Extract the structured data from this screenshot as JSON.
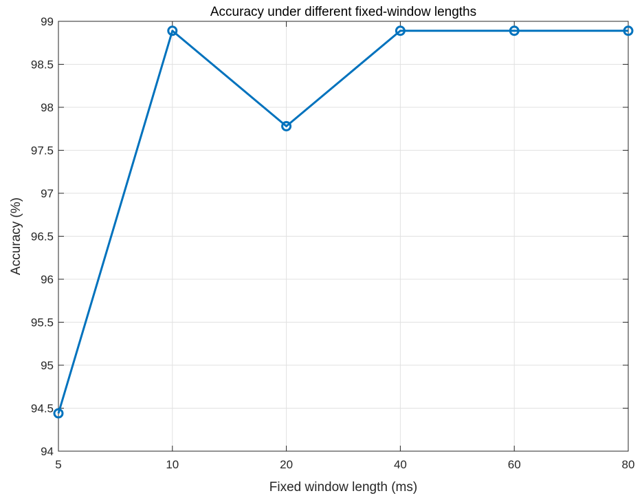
{
  "chart_data": {
    "type": "line",
    "title": "Accuracy under different fixed-window lengths",
    "xlabel": "Fixed window length (ms)",
    "ylabel": "Accuracy (%)",
    "categories": [
      "5",
      "10",
      "20",
      "40",
      "60",
      "80"
    ],
    "ylim": [
      94,
      99
    ],
    "yticks": [
      "94",
      "94.5",
      "95",
      "95.5",
      "96",
      "96.5",
      "97",
      "97.5",
      "98",
      "98.5",
      "99"
    ],
    "grid": true,
    "series": [
      {
        "values": [
          94.44,
          98.89,
          97.78,
          98.89,
          98.89,
          98.89
        ],
        "color": "#0072BD",
        "marker": "circle"
      }
    ]
  }
}
